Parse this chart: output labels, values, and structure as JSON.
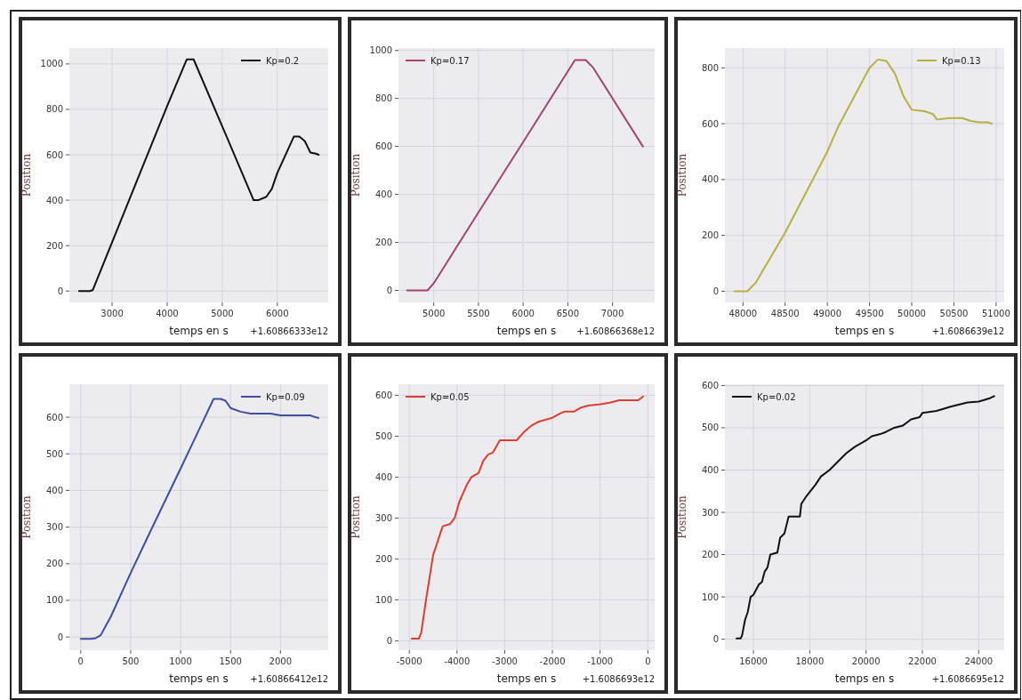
{
  "chart_data": [
    {
      "type": "line",
      "xlabel": "temps en s",
      "ylabel": "Position",
      "annotations": [
        "+1.60866333e12"
      ],
      "grid": true,
      "legend": "top right",
      "xlim": [
        2224,
        6924
      ],
      "ylim": [
        -50,
        1070
      ],
      "xticks": [
        3000,
        4000,
        5000,
        6000
      ],
      "yticks": [
        0,
        200,
        400,
        600,
        800,
        1000
      ],
      "series": [
        {
          "name": "Kp=0.2",
          "color": "#111111",
          "x": [
            2400,
            2600,
            2650,
            3000,
            3500,
            4000,
            4355,
            4480,
            5000,
            5570,
            5650,
            5800,
            5900,
            6000,
            6300,
            6400,
            6500,
            6600,
            6700,
            6750
          ],
          "values": [
            0,
            0,
            5,
            215,
            515,
            815,
            1020,
            1020,
            725,
            400,
            400,
            415,
            450,
            520,
            680,
            680,
            660,
            610,
            605,
            600
          ]
        }
      ]
    },
    {
      "type": "line",
      "xlabel": "temps en s",
      "ylabel": "Position",
      "annotations": [
        "+1.60866368e12"
      ],
      "grid": true,
      "legend": "top left",
      "xlim": [
        4605,
        7472
      ],
      "ylim": [
        -50,
        1010
      ],
      "xticks": [
        5000,
        5500,
        6000,
        6500,
        7000
      ],
      "yticks": [
        0,
        200,
        400,
        600,
        800,
        1000
      ],
      "series": [
        {
          "name": "Kp=0.17",
          "color": "#a0456e",
          "x": [
            4700,
            4930,
            5000,
            5500,
            6000,
            6580,
            6700,
            6780,
            7340
          ],
          "values": [
            0,
            0,
            30,
            325,
            618,
            960,
            960,
            930,
            600
          ]
        }
      ]
    },
    {
      "type": "line",
      "xlabel": "temps en s",
      "ylabel": "Position",
      "annotations": [
        "+1.6086639e12"
      ],
      "grid": true,
      "legend": "top right",
      "xlim": [
        47786,
        51096
      ],
      "ylim": [
        -40,
        871
      ],
      "xticks": [
        48000,
        48500,
        49000,
        49500,
        50000,
        50500,
        51000
      ],
      "yticks": [
        0,
        200,
        400,
        600,
        800
      ],
      "series": [
        {
          "name": "Kp=0.13",
          "color": "#b5b040",
          "x": [
            47900,
            48050,
            48150,
            48500,
            49000,
            49130,
            49500,
            49600,
            49700,
            49800,
            49900,
            50000,
            50150,
            50250,
            50300,
            50450,
            50600,
            50700,
            50800,
            50900,
            50950
          ],
          "values": [
            0,
            0,
            30,
            210,
            500,
            590,
            800,
            830,
            825,
            780,
            700,
            650,
            645,
            635,
            615,
            620,
            620,
            610,
            605,
            605,
            600
          ]
        }
      ]
    },
    {
      "type": "line",
      "xlabel": "temps en s",
      "ylabel": "Position",
      "annotations": [
        "+1.60866412e12"
      ],
      "grid": true,
      "legend": "top right",
      "xlim": [
        -114,
        2478
      ],
      "ylim": [
        -36,
        690
      ],
      "xticks": [
        0,
        500,
        1000,
        1500,
        2000
      ],
      "yticks": [
        0,
        100,
        200,
        300,
        400,
        500,
        600
      ],
      "series": [
        {
          "name": "Kp=0.09",
          "color": "#3a4fa0",
          "x": [
            0,
            100,
            150,
            200,
            250,
            300,
            500,
            700,
            1000,
            1200,
            1330,
            1400,
            1450,
            1500,
            1600,
            1700,
            1900,
            2000,
            2300,
            2350,
            2380
          ],
          "values": [
            -5,
            -5,
            -3,
            5,
            30,
            55,
            175,
            290,
            460,
            575,
            650,
            650,
            645,
            625,
            615,
            610,
            610,
            605,
            605,
            600,
            598
          ]
        }
      ]
    },
    {
      "type": "line",
      "xlabel": "temps en s",
      "ylabel": "Position",
      "annotations": [
        "+1.6086693e12"
      ],
      "grid": true,
      "legend": "top left",
      "xlim": [
        -5227,
        143
      ],
      "ylim": [
        -23,
        627
      ],
      "xticks": [
        -5000,
        -4000,
        -3000,
        -2000,
        -1000,
        0
      ],
      "yticks": [
        0,
        100,
        200,
        300,
        400,
        500,
        600
      ],
      "series": [
        {
          "name": "Kp=0.05",
          "color": "#e03c2e",
          "x": [
            -4950,
            -4800,
            -4750,
            -4650,
            -4500,
            -4300,
            -4150,
            -4050,
            -3950,
            -3800,
            -3700,
            -3550,
            -3450,
            -3350,
            -3250,
            -3100,
            -2750,
            -2600,
            -2450,
            -2300,
            -2150,
            -2000,
            -1850,
            -1750,
            -1550,
            -1400,
            -1250,
            -1000,
            -800,
            -600,
            -200,
            -100
          ],
          "values": [
            5,
            5,
            20,
            100,
            210,
            280,
            285,
            300,
            340,
            380,
            400,
            410,
            440,
            455,
            460,
            490,
            490,
            510,
            525,
            535,
            540,
            545,
            555,
            560,
            560,
            570,
            575,
            578,
            582,
            588,
            588,
            597
          ]
        }
      ]
    },
    {
      "type": "line",
      "xlabel": "temps en s",
      "ylabel": "Position",
      "annotations": [
        "+1.6086695e12"
      ],
      "grid": true,
      "legend": "top left",
      "xlim": [
        14987,
        24907
      ],
      "ylim": [
        -26,
        603
      ],
      "xticks": [
        16000,
        18000,
        20000,
        22000,
        24000
      ],
      "yticks": [
        0,
        100,
        200,
        300,
        400,
        500,
        600
      ],
      "series": [
        {
          "name": "Kp=0.02",
          "color": "#111111",
          "x": [
            15400,
            15550,
            15600,
            15700,
            15800,
            15900,
            16000,
            16200,
            16300,
            16400,
            16500,
            16600,
            16850,
            16950,
            17100,
            17250,
            17650,
            17700,
            17900,
            18200,
            18400,
            18700,
            19000,
            19300,
            19600,
            20000,
            20200,
            20500,
            20700,
            21000,
            21300,
            21600,
            21900,
            22000,
            22500,
            23000,
            23600,
            24000,
            24400,
            24550
          ],
          "values": [
            2,
            2,
            10,
            45,
            65,
            100,
            105,
            130,
            135,
            160,
            170,
            200,
            205,
            240,
            250,
            290,
            290,
            320,
            340,
            365,
            385,
            400,
            420,
            440,
            455,
            470,
            480,
            485,
            490,
            500,
            505,
            520,
            525,
            535,
            540,
            550,
            560,
            562,
            570,
            575
          ]
        }
      ]
    }
  ]
}
